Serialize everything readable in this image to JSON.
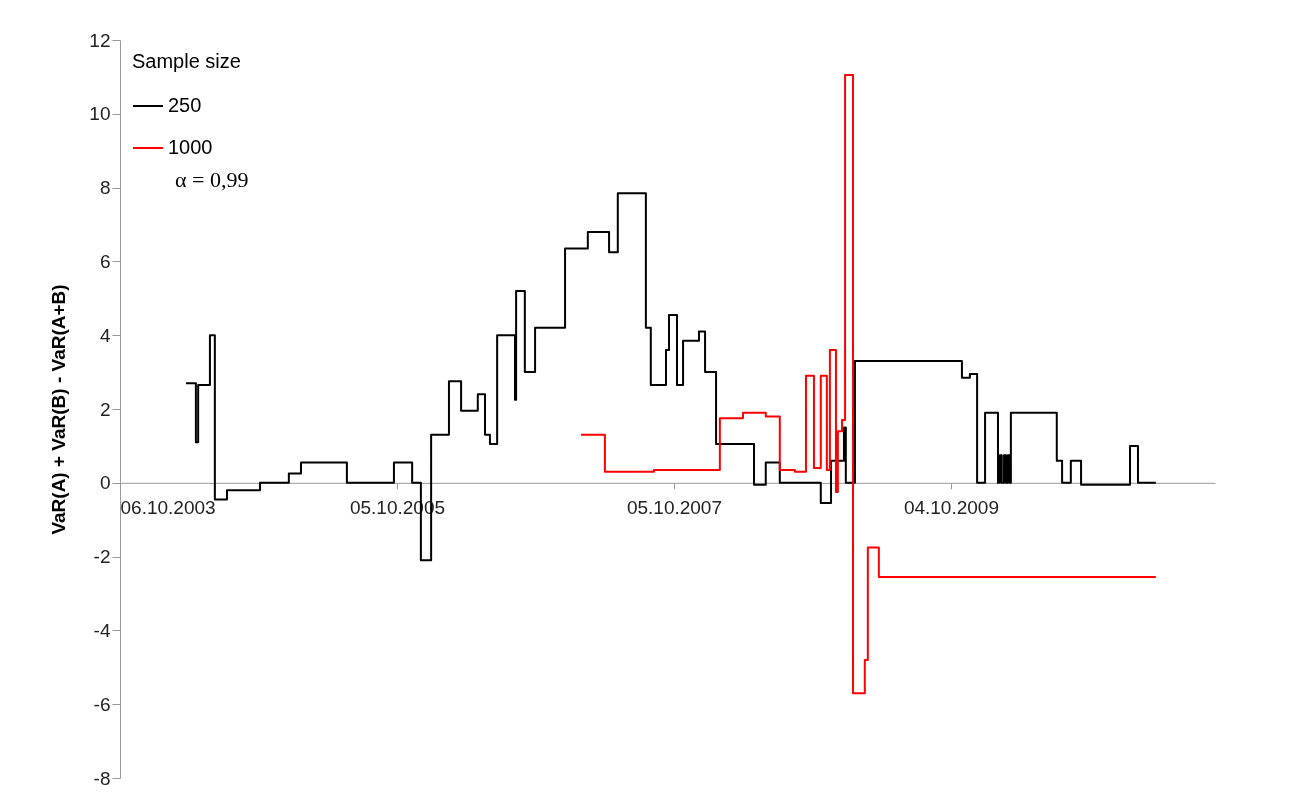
{
  "chart_data": {
    "type": "step",
    "ylabel": "VaR(A) + VaR(B) - VaR(A+B)",
    "legend_title": "Sample size",
    "legend": "top left",
    "grid": false,
    "annotations": [
      "α = 0,99"
    ],
    "xlim": [
      "2003-10-06",
      "2011-08-31"
    ],
    "xticks": [
      {
        "value": "2003-10-06",
        "label": "06.10.2003"
      },
      {
        "value": "2005-10-05",
        "label": "05.10.2005"
      },
      {
        "value": "2007-10-05",
        "label": "05.10.2007"
      },
      {
        "value": "2009-10-04",
        "label": "04.10.2009"
      }
    ],
    "ylim": [
      -8,
      12
    ],
    "yticks": [
      -8,
      -6,
      -4,
      -2,
      0,
      2,
      4,
      6,
      8,
      10,
      12
    ],
    "series": [
      {
        "name": "250",
        "color": "#000000",
        "x": [
          "2004-03-28",
          "2004-04-23",
          "2004-04-29",
          "2004-05-30",
          "2004-06-12",
          "2004-07-14",
          "2004-10-09",
          "2004-12-24",
          "2005-01-25",
          "2005-05-26",
          "2005-09-27",
          "2005-11-14",
          "2005-12-07",
          "2006-01-03",
          "2006-02-19",
          "2006-03-23",
          "2006-05-06",
          "2006-05-25",
          "2006-06-07",
          "2006-06-26",
          "2006-08-12",
          "2006-08-15",
          "2006-09-07",
          "2006-10-04",
          "2006-12-22",
          "2007-02-20",
          "2007-04-17",
          "2007-05-10",
          "2007-07-23",
          "2007-08-05",
          "2007-09-14",
          "2007-09-22",
          "2007-10-13",
          "2007-10-29",
          "2007-12-10",
          "2007-12-26",
          "2008-01-24",
          "2008-05-03",
          "2008-06-03",
          "2008-07-10",
          "2008-10-26",
          "2008-11-22",
          "2008-12-26",
          "2008-12-31",
          "2009-01-24",
          "2009-11-02",
          "2009-11-23",
          "2009-12-12",
          "2010-01-02",
          "2010-02-05",
          "2010-02-10",
          "2010-02-15",
          "2010-02-21",
          "2010-02-26",
          "2010-03-03",
          "2010-03-08",
          "2010-03-11",
          "2010-07-10",
          "2010-07-24",
          "2010-08-16",
          "2010-09-12",
          "2011-01-19",
          "2011-02-09",
          "2011-03-28"
        ],
        "values": [
          2.7,
          1.1,
          2.65,
          4.0,
          -0.45,
          -0.2,
          0,
          0.25,
          0.55,
          0,
          0.55,
          0,
          -2.1,
          1.3,
          2.75,
          1.95,
          2.4,
          1.3,
          1.05,
          4.0,
          2.25,
          5.2,
          3.0,
          4.2,
          6.35,
          6.8,
          6.25,
          7.85,
          4.2,
          2.65,
          3.6,
          4.55,
          2.65,
          3.85,
          4.1,
          3.0,
          1.05,
          -0.05,
          0.55,
          0,
          -0.55,
          0.6,
          1.5,
          0,
          3.3,
          2.85,
          2.95,
          0,
          1.9,
          0,
          0.75,
          0,
          0.75,
          0,
          0.75,
          0,
          1.9,
          0.6,
          0,
          0.6,
          -0.05,
          1.0,
          0,
          0
        ]
      },
      {
        "name": "1000",
        "color": "#ff0000",
        "x": [
          "2007-02-02",
          "2007-04-06",
          "2007-08-13",
          "2008-02-03",
          "2008-04-04",
          "2008-06-03",
          "2008-07-10",
          "2008-08-19",
          "2008-09-17",
          "2008-10-08",
          "2008-10-26",
          "2008-11-11",
          "2008-11-19",
          "2008-12-05",
          "2008-12-10",
          "2008-12-21",
          "2008-12-29",
          "2009-01-19",
          "2009-02-19",
          "2009-02-27",
          "2009-03-28",
          "2011-03-28"
        ],
        "values": [
          1.3,
          0.3,
          0.35,
          1.75,
          1.9,
          1.8,
          0.35,
          0.3,
          2.9,
          0.4,
          2.9,
          0.35,
          3.6,
          -0.25,
          1.4,
          1.7,
          11.05,
          -5.7,
          -4.8,
          -1.75,
          -2.55,
          -2.55
        ]
      }
    ]
  }
}
